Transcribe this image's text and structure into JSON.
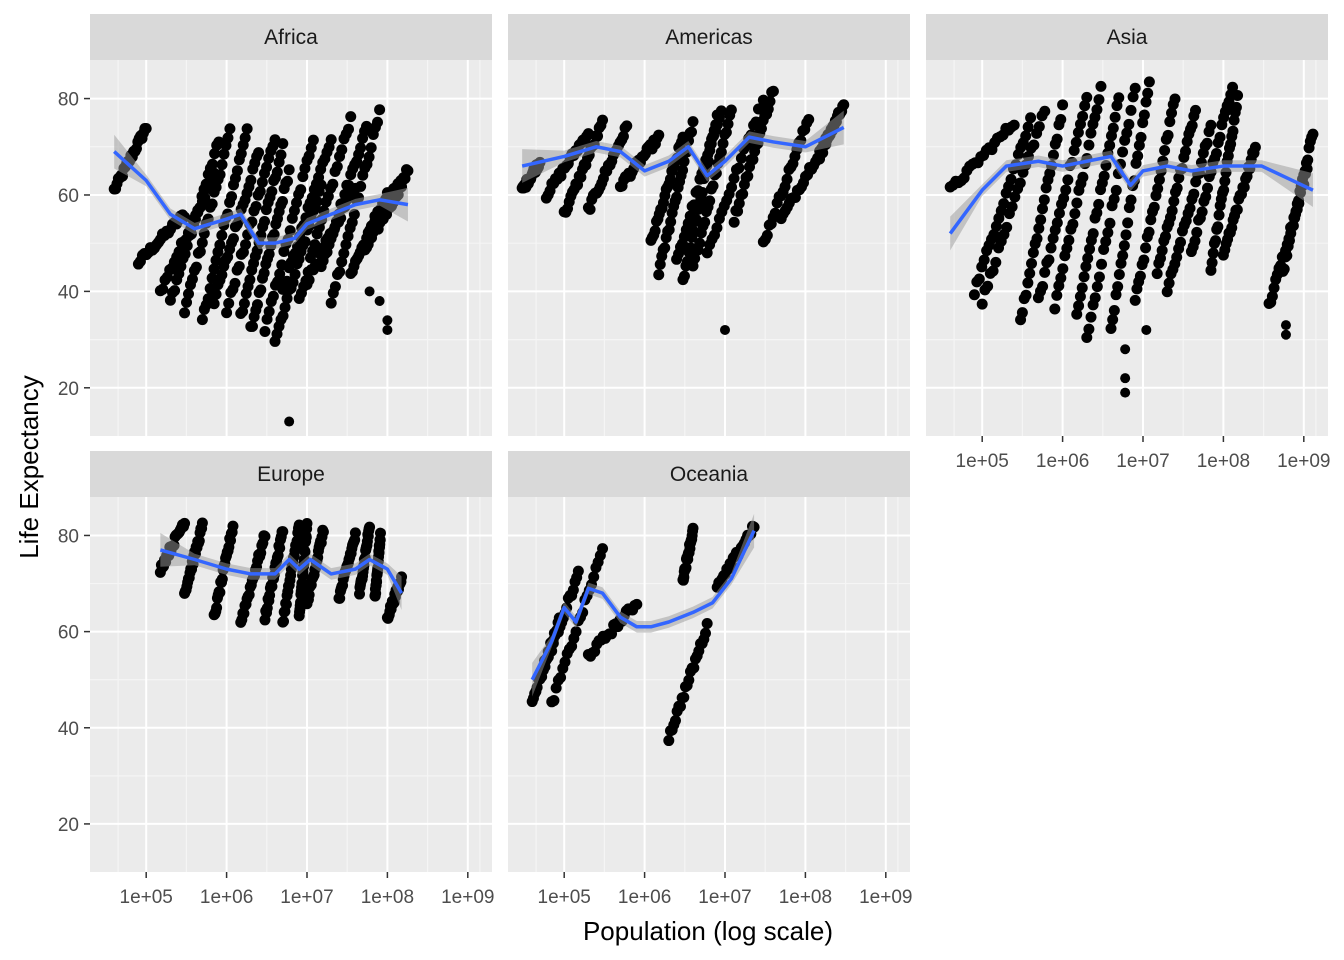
{
  "chart_data": {
    "type": "scatter",
    "layout": "facet_wrap",
    "xlabel": "Population (log scale)",
    "ylabel": "Life Expectancy",
    "x_scale": "log10",
    "xlim": [
      20000,
      2000000000
    ],
    "ylim": [
      10,
      88
    ],
    "x_ticks": [
      100000,
      1000000,
      10000000,
      100000000,
      1000000000
    ],
    "x_tick_labels": [
      "1e+05",
      "1e+06",
      "1e+07",
      "1e+08",
      "1e+09"
    ],
    "y_ticks": [
      20,
      40,
      60,
      80
    ],
    "y_tick_labels": [
      "20",
      "40",
      "60",
      "80"
    ],
    "grid": true,
    "colors": {
      "panel_bg": "#ebebeb",
      "strip_bg": "#d9d9d9",
      "grid_major": "#ffffff",
      "points": "#000000",
      "smooth_line": "#3366ff",
      "ribbon": "#999999"
    },
    "facets": [
      {
        "name": "Africa",
        "trajectories": [
          {
            "pop": [
              40000,
              100000
            ],
            "life": [
              61,
              74
            ]
          },
          {
            "pop": [
              80000,
              300000
            ],
            "life": [
              46,
              56
            ]
          },
          {
            "pop": [
              150000,
              700000
            ],
            "life": [
              40,
              64
            ]
          },
          {
            "pop": [
              200000,
              800000
            ],
            "life": [
              38,
              71
            ]
          },
          {
            "pop": [
              300000,
              1100000
            ],
            "life": [
              36,
              73
            ]
          },
          {
            "pop": [
              500000,
              1800000
            ],
            "life": [
              34,
              74
            ]
          },
          {
            "pop": [
              700000,
              2500000
            ],
            "life": [
              38,
              69
            ]
          },
          {
            "pop": [
              1000000,
              4000000
            ],
            "life": [
              36,
              72
            ]
          },
          {
            "pop": [
              1500000,
              5000000
            ],
            "life": [
              35,
              70
            ]
          },
          {
            "pop": [
              2000000,
              6000000
            ],
            "life": [
              32,
              65
            ]
          },
          {
            "pop": [
              3000000,
              12000000
            ],
            "life": [
              32,
              72
            ]
          },
          {
            "pop": [
              4000000,
              15000000
            ],
            "life": [
              30,
              62
            ]
          },
          {
            "pop": [
              5000000,
              20000000
            ],
            "life": [
              40,
              72
            ]
          },
          {
            "pop": [
              8000000,
              35000000
            ],
            "life": [
              38,
              76
            ]
          },
          {
            "pop": [
              10000000,
              40000000
            ],
            "life": [
              42,
              62
            ]
          },
          {
            "pop": [
              15000000,
              55000000
            ],
            "life": [
              45,
              74
            ]
          },
          {
            "pop": [
              20000000,
              80000000
            ],
            "life": [
              38,
              77
            ]
          },
          {
            "pop": [
              35000000,
              100000000
            ],
            "life": [
              44,
              60
            ]
          },
          {
            "pop": [
              50000000,
              150000000
            ],
            "life": [
              48,
              62
            ]
          },
          {
            "pop": [
              70000000,
              180000000
            ],
            "life": [
              55,
              65
            ]
          }
        ],
        "scatter_points": [
          [
            6000000,
            13
          ],
          [
            100000000,
            32
          ],
          [
            100000000,
            34
          ],
          [
            60000000,
            40
          ],
          [
            80000000,
            38
          ]
        ],
        "smooth": {
          "pop": [
            40000,
            100000,
            200000,
            400000,
            1000000,
            1500000,
            2500000,
            4000000,
            7000000,
            10000000,
            20000000,
            40000000,
            80000000,
            180000000
          ],
          "life": [
            69,
            63,
            56,
            53,
            55,
            56,
            50,
            50,
            51,
            54,
            56,
            58,
            59,
            58
          ]
        }
      },
      {
        "name": "Americas",
        "trajectories": [
          {
            "pop": [
              30000,
              50000
            ],
            "life": [
              61,
              67
            ]
          },
          {
            "pop": [
              60000,
              200000
            ],
            "life": [
              60,
              73
            ]
          },
          {
            "pop": [
              100000,
              300000
            ],
            "life": [
              56,
              75
            ]
          },
          {
            "pop": [
              200000,
              600000
            ],
            "life": [
              57,
              74
            ]
          },
          {
            "pop": [
              500000,
              1500000
            ],
            "life": [
              62,
              72
            ]
          },
          {
            "pop": [
              1200000,
              3000000
            ],
            "life": [
              50,
              72
            ]
          },
          {
            "pop": [
              1500000,
              4000000
            ],
            "life": [
              44,
              75
            ]
          },
          {
            "pop": [
              2500000,
              9000000
            ],
            "life": [
              46,
              78
            ]
          },
          {
            "pop": [
              3000000,
              8000000
            ],
            "life": [
              42,
              76
            ]
          },
          {
            "pop": [
              4000000,
              12000000
            ],
            "life": [
              45,
              78
            ]
          },
          {
            "pop": [
              6000000,
              30000000
            ],
            "life": [
              48,
              80
            ]
          },
          {
            "pop": [
              13000000,
              40000000
            ],
            "life": [
              55,
              82
            ]
          },
          {
            "pop": [
              50000000,
              190000000
            ],
            "life": [
              55,
              72
            ]
          },
          {
            "pop": [
              30000000,
              110000000
            ],
            "life": [
              50,
              76
            ]
          },
          {
            "pop": [
              150000000,
              300000000
            ],
            "life": [
              68,
              79
            ]
          }
        ],
        "scatter_points": [
          [
            10000000,
            32
          ]
        ],
        "smooth": {
          "pop": [
            30000,
            100000,
            250000,
            500000,
            1000000,
            2000000,
            3500000,
            6000000,
            10000000,
            20000000,
            40000000,
            100000000,
            300000000
          ],
          "life": [
            66,
            68,
            70,
            69,
            65,
            67,
            70,
            64,
            67,
            72,
            71,
            70,
            74
          ]
        }
      },
      {
        "name": "Asia",
        "trajectories": [
          {
            "pop": [
              40000,
              250000
            ],
            "life": [
              61,
              75
            ]
          },
          {
            "pop": [
              80000,
              400000
            ],
            "life": [
              40,
              76
            ]
          },
          {
            "pop": [
              100000,
              600000
            ],
            "life": [
              38,
              78
            ]
          },
          {
            "pop": [
              300000,
              1000000
            ],
            "life": [
              34,
              78
            ]
          },
          {
            "pop": [
              500000,
              2000000
            ],
            "life": [
              38,
              80
            ]
          },
          {
            "pop": [
              800000,
              3000000
            ],
            "life": [
              37,
              82
            ]
          },
          {
            "pop": [
              1500000,
              5000000
            ],
            "life": [
              35,
              80
            ]
          },
          {
            "pop": [
              2000000,
              8000000
            ],
            "life": [
              30,
              82
            ]
          },
          {
            "pop": [
              4000000,
              12000000
            ],
            "life": [
              32,
              84
            ]
          },
          {
            "pop": [
              8000000,
              25000000
            ],
            "life": [
              38,
              80
            ]
          },
          {
            "pop": [
              15000000,
              45000000
            ],
            "life": [
              44,
              78
            ]
          },
          {
            "pop": [
              20000000,
              70000000
            ],
            "life": [
              40,
              74
            ]
          },
          {
            "pop": [
              40000000,
              130000000
            ],
            "life": [
              48,
              83
            ]
          },
          {
            "pop": [
              70000000,
              150000000
            ],
            "life": [
              45,
              80
            ]
          },
          {
            "pop": [
              100000000,
              250000000
            ],
            "life": [
              48,
              70
            ]
          },
          {
            "pop": [
              550000000,
              1300000000
            ],
            "life": [
              44,
              73
            ]
          },
          {
            "pop": [
              370000000,
              1100000000
            ],
            "life": [
              37,
              65
            ]
          }
        ],
        "scatter_points": [
          [
            6000000,
            19
          ],
          [
            6000000,
            22
          ],
          [
            6000000,
            28
          ],
          [
            600000000,
            31
          ],
          [
            600000000,
            33
          ],
          [
            11000000,
            32
          ]
        ],
        "smooth": {
          "pop": [
            40000,
            100000,
            200000,
            500000,
            1000000,
            2000000,
            4000000,
            7000000,
            10000000,
            20000000,
            40000000,
            100000000,
            300000000,
            1300000000
          ],
          "life": [
            52,
            61,
            66,
            67,
            66,
            67,
            68,
            62,
            65,
            66,
            65,
            66,
            66,
            61
          ]
        }
      },
      {
        "name": "Europe",
        "trajectories": [
          {
            "pop": [
              150000,
              300000
            ],
            "life": [
              73,
              83
            ]
          },
          {
            "pop": [
              300000,
              500000
            ],
            "life": [
              68,
              82
            ]
          },
          {
            "pop": [
              700000,
              1200000
            ],
            "life": [
              63,
              82
            ]
          },
          {
            "pop": [
              1500000,
              3000000
            ],
            "life": [
              62,
              80
            ]
          },
          {
            "pop": [
              3000000,
              5000000
            ],
            "life": [
              63,
              81
            ]
          },
          {
            "pop": [
              5000000,
              8000000
            ],
            "life": [
              62,
              82
            ]
          },
          {
            "pop": [
              8000000,
              10000000
            ],
            "life": [
              63,
              82
            ]
          },
          {
            "pop": [
              10000000,
              16000000
            ],
            "life": [
              66,
              81
            ]
          },
          {
            "pop": [
              25000000,
              40000000
            ],
            "life": [
              67,
              80
            ]
          },
          {
            "pop": [
              45000000,
              60000000
            ],
            "life": [
              68,
              82
            ]
          },
          {
            "pop": [
              70000000,
              82000000
            ],
            "life": [
              67,
              80
            ]
          },
          {
            "pop": [
              100000000,
              150000000
            ],
            "life": [
              63,
              71
            ]
          }
        ],
        "scatter_points": [],
        "smooth": {
          "pop": [
            150000,
            400000,
            1000000,
            2000000,
            4000000,
            6000000,
            8000000,
            11000000,
            20000000,
            40000000,
            60000000,
            100000000,
            150000000
          ],
          "life": [
            77,
            75,
            73,
            72,
            72,
            75,
            73,
            75,
            72,
            73,
            75,
            73,
            68
          ]
        }
      },
      {
        "name": "Oceania",
        "trajectories": [
          {
            "pop": [
              40000,
              90000
            ],
            "life": [
              46,
              63
            ]
          },
          {
            "pop": [
              50000,
              150000
            ],
            "life": [
              50,
              72
            ]
          },
          {
            "pop": [
              70000,
              300000
            ],
            "life": [
              45,
              77
            ]
          },
          {
            "pop": [
              200000,
              800000
            ],
            "life": [
              55,
              66
            ]
          },
          {
            "pop": [
              2000000,
              6000000
            ],
            "life": [
              38,
              61
            ]
          },
          {
            "pop": [
              3000000,
              4000000
            ],
            "life": [
              71,
              81
            ]
          },
          {
            "pop": [
              8000000,
              23000000
            ],
            "life": [
              69,
              82
            ]
          }
        ],
        "scatter_points": [],
        "smooth": {
          "pop": [
            40000,
            70000,
            100000,
            140000,
            200000,
            300000,
            500000,
            800000,
            1200000,
            2000000,
            4000000,
            7000000,
            12000000,
            23000000
          ],
          "life": [
            50,
            58,
            65,
            62,
            69,
            68,
            63,
            61,
            61,
            62,
            64,
            66,
            71,
            81
          ]
        }
      }
    ]
  }
}
